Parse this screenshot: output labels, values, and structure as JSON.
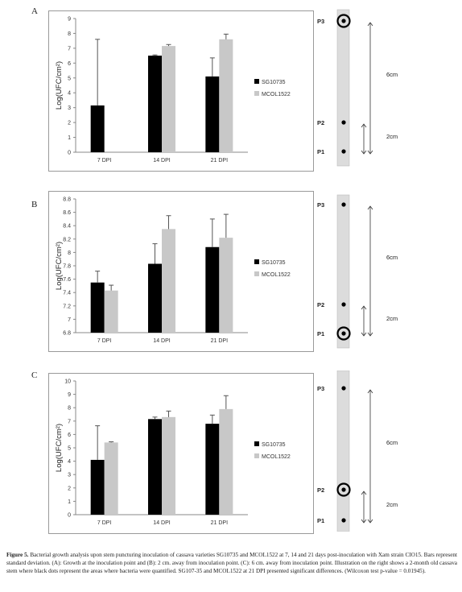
{
  "panels": [
    {
      "letter": "A"
    },
    {
      "letter": "B"
    },
    {
      "letter": "C"
    }
  ],
  "legend": {
    "series1": "SG10735",
    "series2": "MCOL1522"
  },
  "ylabel": "Log(UFC/cm²)",
  "chart_data": [
    {
      "type": "bar",
      "categories": [
        "7 DPI",
        "14 DPI",
        "21 DPI"
      ],
      "ylabel": "Log(UFC/cm²)",
      "ylim": [
        0,
        9
      ],
      "yticks": [
        0,
        1,
        2,
        3,
        4,
        5,
        6,
        7,
        8,
        9
      ],
      "legend_position": "right",
      "series": [
        {
          "name": "SG10735",
          "color": "#000000",
          "values": [
            3.15,
            6.5,
            5.1
          ],
          "errors": [
            4.45,
            0.05,
            1.25
          ]
        },
        {
          "name": "MCOL1522",
          "color": "#c8c8c8",
          "values": [
            null,
            7.15,
            7.6
          ],
          "errors": [
            null,
            0.1,
            0.35
          ]
        }
      ]
    },
    {
      "type": "bar",
      "categories": [
        "7 DPI",
        "14 DPI",
        "21 DPI"
      ],
      "ylabel": "Log(UFC/cm²)",
      "ylim": [
        6.8,
        8.8
      ],
      "yticks": [
        6.8,
        7,
        7.2,
        7.4,
        7.6,
        7.8,
        8,
        8.2,
        8.4,
        8.6,
        8.8
      ],
      "legend_position": "right",
      "series": [
        {
          "name": "SG10735",
          "color": "#000000",
          "values": [
            7.55,
            7.83,
            8.08
          ],
          "errors": [
            0.17,
            0.3,
            0.42
          ]
        },
        {
          "name": "MCOL1522",
          "color": "#c8c8c8",
          "values": [
            7.43,
            8.35,
            8.22
          ],
          "errors": [
            0.08,
            0.2,
            0.35
          ]
        }
      ]
    },
    {
      "type": "bar",
      "categories": [
        "7 DPI",
        "14 DPI",
        "21 DPI"
      ],
      "ylabel": "Log(UFC/cm²)",
      "ylim": [
        0,
        10
      ],
      "yticks": [
        0,
        1,
        2,
        3,
        4,
        5,
        6,
        7,
        8,
        9,
        10
      ],
      "legend_position": "right",
      "series": [
        {
          "name": "SG10735",
          "color": "#000000",
          "values": [
            4.1,
            7.15,
            6.8
          ],
          "errors": [
            2.55,
            0.15,
            0.65
          ]
        },
        {
          "name": "MCOL1522",
          "color": "#c8c8c8",
          "values": [
            5.4,
            7.3,
            7.9
          ],
          "errors": [
            0.05,
            0.45,
            1.0
          ]
        }
      ]
    }
  ],
  "stems": [
    {
      "points": [
        "P3",
        "P2",
        "P1"
      ],
      "circled": "P3",
      "long_label": "6cm",
      "short_label": "2cm"
    },
    {
      "points": [
        "P3",
        "P2",
        "P1"
      ],
      "circled": "P1",
      "long_label": "6cm",
      "short_label": "2cm"
    },
    {
      "points": [
        "P3",
        "P2",
        "P1"
      ],
      "circled": "P2",
      "long_label": "6cm",
      "short_label": "2cm"
    }
  ],
  "caption": {
    "label": "Figure 5.",
    "text": "Bacterial growth analysis upon stem puncturing inoculation of cassava varieties SG10735 and MCOL1522 at 7, 14 and 21 days post-inoculation with Xam strain CIO15. Bars represent standard deviation. (A): Growth at the inoculation point and (B): 2 cm. away from inoculation point. (C): 6 cm. away from inoculation point. Illustration on the right shows a 2-month old cassava stem where black dots represent the areas where bacteria were quantified. SG107-35 and MCOL1522 at 21 DPI presented significant differences. (Wilcoxon test p-value = 0.01945)."
  }
}
